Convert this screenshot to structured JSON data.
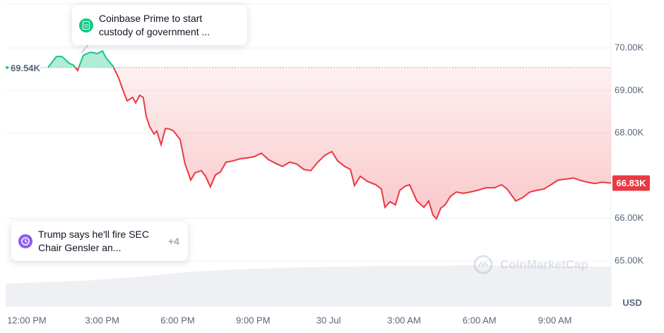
{
  "chart_data": {
    "type": "line",
    "x": [
      0.84,
      1.18,
      1.4,
      1.69,
      1.85,
      2.02,
      2.25,
      2.53,
      2.81,
      3.01,
      3.15,
      3.43,
      3.65,
      3.85,
      3.99,
      4.21,
      4.33,
      4.49,
      4.63,
      4.75,
      4.89,
      5.06,
      5.17,
      5.34,
      5.51,
      5.67,
      5.84,
      6.1,
      6.29,
      6.52,
      6.69,
      6.94,
      7.11,
      7.3,
      7.5,
      7.7,
      7.92,
      8.2,
      8.48,
      8.76,
      9.04,
      9.33,
      9.61,
      9.94,
      10.17,
      10.45,
      10.73,
      11.01,
      11.29,
      11.57,
      11.85,
      12.13,
      12.36,
      12.64,
      12.87,
      13.03,
      13.26,
      13.54,
      13.88,
      14.1,
      14.24,
      14.44,
      14.66,
      14.83,
      15.06,
      15.22,
      15.51,
      15.79,
      15.98,
      16.15,
      16.29,
      16.46,
      16.63,
      16.85,
      17.08,
      17.36,
      17.64,
      17.92,
      18.26,
      18.6,
      18.88,
      19.1,
      19.44,
      19.72,
      20.0,
      20.28,
      20.56,
      20.84,
      21.12,
      21.4,
      21.74,
      22.02,
      22.3,
      22.58,
      22.87,
      23.23
    ],
    "values": [
      69540,
      69800,
      69800,
      69640,
      69600,
      69470,
      69830,
      69900,
      69870,
      69930,
      69770,
      69570,
      69300,
      68970,
      68760,
      68840,
      68710,
      68890,
      68840,
      68390,
      68150,
      67980,
      68050,
      67730,
      68110,
      68100,
      68050,
      67850,
      67280,
      66900,
      67070,
      67120,
      66990,
      66740,
      67020,
      67090,
      67320,
      67350,
      67400,
      67420,
      67450,
      67530,
      67380,
      67280,
      67220,
      67320,
      67280,
      67150,
      67120,
      67320,
      67480,
      67570,
      67350,
      67220,
      67150,
      66770,
      66990,
      66870,
      66790,
      66690,
      66260,
      66390,
      66320,
      66660,
      66760,
      66790,
      66410,
      66260,
      66410,
      66080,
      65990,
      66240,
      66320,
      66520,
      66620,
      66590,
      66620,
      66660,
      66720,
      66720,
      66790,
      66690,
      66410,
      66490,
      66620,
      66660,
      66690,
      66790,
      66900,
      66920,
      66950,
      66890,
      66850,
      66820,
      66850,
      66830
    ],
    "color_up": "#16c784",
    "color_down": "#ea3943",
    "xlim": [
      -0.84,
      23.23
    ],
    "xticks": [
      {
        "value": 0,
        "label": "12:00 PM"
      },
      {
        "value": 3,
        "label": "3:00 PM"
      },
      {
        "value": 6,
        "label": "6:00 PM"
      },
      {
        "value": 9,
        "label": "9:00 PM"
      },
      {
        "value": 12,
        "label": "30 Jul"
      },
      {
        "value": 15,
        "label": "3:00 AM"
      },
      {
        "value": 18,
        "label": "6:00 AM"
      },
      {
        "value": 21,
        "label": "9:00 AM"
      }
    ],
    "ylim": [
      63924,
      71043
    ],
    "yticks": [
      {
        "value": 65000,
        "label": "65.00K"
      },
      {
        "value": 66000,
        "label": "66.00K"
      },
      {
        "value": 68000,
        "label": "68.00K"
      },
      {
        "value": 69000,
        "label": "69.00K"
      },
      {
        "value": 70000,
        "label": "70.00K"
      }
    ],
    "grid": true,
    "y_unit": "USD",
    "reference_price": {
      "value": 69540,
      "label": "69.54K"
    },
    "current_price": {
      "value": 66830,
      "label": "66.83K"
    },
    "watermark": "CoinMarketCap",
    "annotations": [
      {
        "text": "Coinbase Prime to start custody of government ..."
      },
      {
        "text": "Trump says he'll fire SEC Chair Gensler an...",
        "more": "+4"
      }
    ]
  }
}
